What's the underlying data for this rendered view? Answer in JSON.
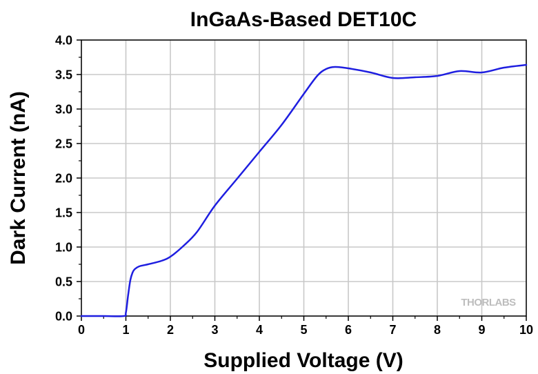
{
  "chart_data": {
    "type": "line",
    "title": "InGaAs-Based DET10C",
    "xlabel": "Supplied Voltage (V)",
    "ylabel": "Dark Current (nA)",
    "xlim": [
      0,
      10
    ],
    "ylim": [
      0,
      4.0
    ],
    "xticks": [
      "0",
      "1",
      "2",
      "3",
      "4",
      "5",
      "6",
      "7",
      "8",
      "9",
      "10"
    ],
    "yticks": [
      "0.0",
      "0.5",
      "1.0",
      "1.5",
      "2.0",
      "2.5",
      "3.0",
      "3.5",
      "4.0"
    ],
    "grid": true,
    "series": [
      {
        "color": "#1e1ee0",
        "x": [
          0,
          0.5,
          0.95,
          1.0,
          1.05,
          1.1,
          1.15,
          1.2,
          1.3,
          1.5,
          1.8,
          2.0,
          2.3,
          2.6,
          3.0,
          3.5,
          4.0,
          4.5,
          5.0,
          5.3,
          5.5,
          5.7,
          6.0,
          6.5,
          7.0,
          7.5,
          8.0,
          8.5,
          9.0,
          9.5,
          10.0
        ],
        "y": [
          0,
          0,
          0,
          0.05,
          0.3,
          0.52,
          0.63,
          0.68,
          0.72,
          0.75,
          0.8,
          0.86,
          1.02,
          1.22,
          1.6,
          1.99,
          2.38,
          2.77,
          3.22,
          3.48,
          3.58,
          3.61,
          3.59,
          3.53,
          3.45,
          3.46,
          3.48,
          3.55,
          3.53,
          3.6,
          3.64
        ]
      }
    ]
  },
  "watermark": "THORLABS",
  "colors": {
    "series": "#1e1ee0",
    "grid": "#c8c8c8"
  }
}
